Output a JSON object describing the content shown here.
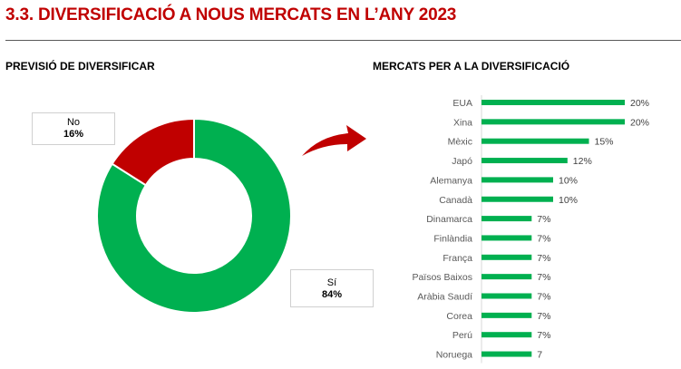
{
  "header": {
    "title": "3.3. DIVERSIFICACIÓ A NOUS MERCATS EN L’ANY 2023"
  },
  "colors": {
    "title": "#c00000",
    "green": "#00b050",
    "red": "#c00000",
    "arrow": "#c00000"
  },
  "chart_data": [
    {
      "type": "pie",
      "title": "PREVISIÓ DE DIVERSIFICAR",
      "donut": true,
      "slices": [
        {
          "label": "Sí",
          "value": 84,
          "display": "84%",
          "color": "#00b050"
        },
        {
          "label": "No",
          "value": 16,
          "display": "16%",
          "color": "#c00000"
        }
      ]
    },
    {
      "type": "bar",
      "orientation": "horizontal",
      "title": "MERCATS PER A LA DIVERSIFICACIÓ",
      "color": "#00b050",
      "categories": [
        "EUA",
        "Xina",
        "Mèxic",
        "Japó",
        "Alemanya",
        "Canadà",
        "Dinamarca",
        "Finlàndia",
        "França",
        "Països Baixos",
        "Aràbia Saudí",
        "Corea",
        "Perú",
        "Noruega"
      ],
      "values": [
        20,
        20,
        15,
        12,
        10,
        10,
        7,
        7,
        7,
        7,
        7,
        7,
        7,
        7
      ],
      "labels": [
        "20%",
        "20%",
        "15%",
        "12%",
        "10%",
        "10%",
        "7%",
        "7%",
        "7%",
        "7%",
        "7%",
        "7%",
        "7%",
        "7"
      ],
      "xlim": [
        0,
        20
      ]
    }
  ]
}
